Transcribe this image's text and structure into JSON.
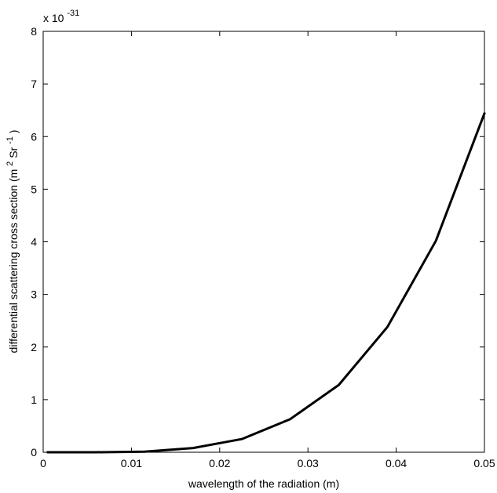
{
  "chart_data": {
    "type": "line",
    "title": "",
    "xlabel": "wavelength of the radiation (m)",
    "ylabel": "differential scattering cross section (m",
    "ylabel_unit_sup1": "2",
    "ylabel_unit_mid": "Sr",
    "ylabel_unit_sup2": "-1",
    "ylabel_unit_end": ")",
    "y_multiplier_base": "x 10",
    "y_multiplier_exp": "-31",
    "xlim": [
      0,
      0.05
    ],
    "ylim": [
      0,
      8
    ],
    "xticks": [
      "0",
      "0.01",
      "0.02",
      "0.03",
      "0.04",
      "0.05"
    ],
    "yticks": [
      "0",
      "1",
      "2",
      "3",
      "4",
      "5",
      "6",
      "7",
      "8"
    ],
    "grid": false,
    "line_color": "#000000",
    "series": [
      {
        "x": [
          0.0005,
          0.006,
          0.0115,
          0.017,
          0.0225,
          0.028,
          0.0335,
          0.039,
          0.0445,
          0.05
        ],
        "y": [
          0.0,
          0.0,
          0.01,
          0.08,
          0.25,
          0.63,
          1.28,
          2.38,
          4.02,
          6.44
        ]
      }
    ]
  }
}
